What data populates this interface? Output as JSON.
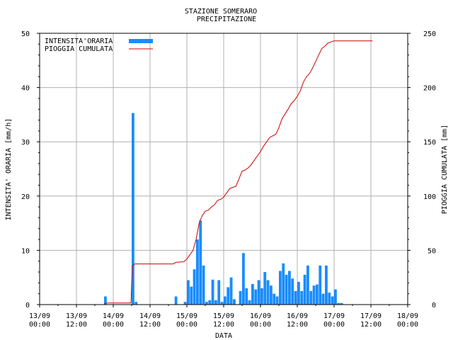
{
  "chart_data": {
    "type": "bar",
    "title": "STAZIONE SOMERARO",
    "subtitle": "PRECIPITAZIONE",
    "xlabel": "DATA",
    "ylabel_left": "INTENSITA' ORARIA [mm/h]",
    "ylabel_right": "PIOGGIA CUMULATA [mm]",
    "ylim_left": [
      0,
      50
    ],
    "ylim_right": [
      0,
      250
    ],
    "yticks_left": [
      0,
      10,
      20,
      30,
      40,
      50
    ],
    "yticks_right": [
      0,
      50,
      100,
      150,
      200,
      250
    ],
    "xlim_hours": [
      0,
      120
    ],
    "xticks": [
      {
        "h": 0,
        "date": "13/09",
        "time": "00:00"
      },
      {
        "h": 12,
        "date": "13/09",
        "time": "12:00"
      },
      {
        "h": 24,
        "date": "14/09",
        "time": "00:00"
      },
      {
        "h": 36,
        "date": "14/09",
        "time": "12:00"
      },
      {
        "h": 48,
        "date": "15/09",
        "time": "00:00"
      },
      {
        "h": 60,
        "date": "15/09",
        "time": "12:00"
      },
      {
        "h": 72,
        "date": "16/09",
        "time": "00:00"
      },
      {
        "h": 84,
        "date": "16/09",
        "time": "12:00"
      },
      {
        "h": 96,
        "date": "17/09",
        "time": "00:00"
      },
      {
        "h": 108,
        "date": "17/09",
        "time": "12:00"
      },
      {
        "h": 120,
        "date": "18/09",
        "time": "00:00"
      }
    ],
    "grid": true,
    "legend_position": "top-left",
    "series": [
      {
        "name": "INTENSITA'ORARIA",
        "kind": "bar",
        "color": "#1a8cff",
        "bars": [
          [
            21,
            1.5
          ],
          [
            30,
            35.3
          ],
          [
            31,
            0.5
          ],
          [
            44,
            1.5
          ],
          [
            47,
            0.5
          ],
          [
            48,
            4.5
          ],
          [
            49,
            3.3
          ],
          [
            50,
            6.5
          ],
          [
            51,
            12
          ],
          [
            52,
            15.5
          ],
          [
            53,
            7.2
          ],
          [
            54,
            0.5
          ],
          [
            55,
            0.8
          ],
          [
            56,
            4.6
          ],
          [
            57,
            0.8
          ],
          [
            58,
            4.5
          ],
          [
            59,
            0.5
          ],
          [
            60,
            1.5
          ],
          [
            61,
            3.2
          ],
          [
            62,
            5
          ],
          [
            63,
            1
          ],
          [
            65,
            2.5
          ],
          [
            66,
            9.5
          ],
          [
            67,
            3
          ],
          [
            68,
            0.8
          ],
          [
            69,
            3.8
          ],
          [
            70,
            2.8
          ],
          [
            71,
            4.5
          ],
          [
            72,
            3
          ],
          [
            73,
            6
          ],
          [
            74,
            4.5
          ],
          [
            75,
            3.5
          ],
          [
            76,
            2
          ],
          [
            77,
            1.5
          ],
          [
            78,
            6.2
          ],
          [
            79,
            7.6
          ],
          [
            80,
            5.5
          ],
          [
            81,
            6.2
          ],
          [
            82,
            4.8
          ],
          [
            83,
            2.5
          ],
          [
            84,
            4.2
          ],
          [
            85,
            2.5
          ],
          [
            86,
            5.5
          ],
          [
            87,
            7.2
          ],
          [
            88,
            2.5
          ],
          [
            89,
            3.5
          ],
          [
            90,
            3.7
          ],
          [
            91,
            7.2
          ],
          [
            92,
            2
          ],
          [
            93,
            7.2
          ],
          [
            94,
            2.2
          ],
          [
            95,
            1.5
          ],
          [
            96,
            2.8
          ],
          [
            97,
            0.3
          ],
          [
            98,
            0.3
          ]
        ]
      },
      {
        "name": "PIOGGIA CUMULATA",
        "kind": "line",
        "color": "#cc0000",
        "points": [
          [
            21,
            0.5
          ],
          [
            21.8,
            1.5
          ],
          [
            29.8,
            1.5
          ],
          [
            30.2,
            35.5
          ],
          [
            31,
            37.5
          ],
          [
            43.5,
            37.5
          ],
          [
            44.5,
            39
          ],
          [
            47,
            39.5
          ],
          [
            48,
            42
          ],
          [
            50,
            50
          ],
          [
            51,
            60
          ],
          [
            52,
            75
          ],
          [
            53,
            82
          ],
          [
            54,
            86
          ],
          [
            55,
            87
          ],
          [
            56,
            90
          ],
          [
            57,
            92
          ],
          [
            58,
            96
          ],
          [
            59,
            97
          ],
          [
            60,
            99
          ],
          [
            61,
            103
          ],
          [
            62,
            107
          ],
          [
            64,
            109
          ],
          [
            65,
            116
          ],
          [
            66,
            123
          ],
          [
            67,
            124
          ],
          [
            68,
            126
          ],
          [
            69,
            129
          ],
          [
            70,
            133
          ],
          [
            72,
            141
          ],
          [
            73,
            146
          ],
          [
            74,
            150
          ],
          [
            75,
            154
          ],
          [
            77,
            157
          ],
          [
            78,
            163
          ],
          [
            79,
            171
          ],
          [
            81,
            180
          ],
          [
            82,
            185
          ],
          [
            83,
            188
          ],
          [
            84,
            192
          ],
          [
            85,
            197
          ],
          [
            86,
            205
          ],
          [
            87,
            210
          ],
          [
            88,
            213
          ],
          [
            89,
            218
          ],
          [
            90,
            224
          ],
          [
            91,
            230
          ],
          [
            92,
            236
          ],
          [
            93,
            238
          ],
          [
            94,
            241
          ],
          [
            96,
            243
          ],
          [
            108.5,
            243
          ]
        ]
      }
    ]
  }
}
